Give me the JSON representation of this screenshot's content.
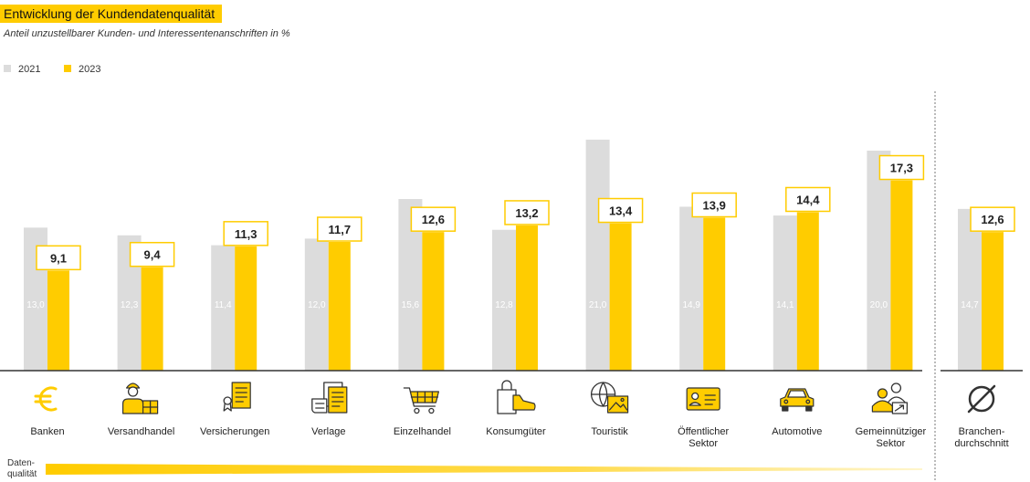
{
  "title": "Entwicklung der Kundendatenqualität",
  "subtitle": "Anteil unzustellbarer Kunden- und Interessentenanschriften in %",
  "data_quality_label": [
    "Daten-",
    "qualität"
  ],
  "colors": {
    "y2021": "#dcdcdc",
    "y2023": "#ffcc00",
    "accent": "#ffcc00",
    "axis": "#333333"
  },
  "chart_data": {
    "type": "bar",
    "series": [
      {
        "name": "2021",
        "values": [
          13.0,
          12.3,
          11.4,
          12.0,
          15.6,
          12.8,
          21.0,
          14.9,
          14.1,
          20.0,
          14.7
        ]
      },
      {
        "name": "2023",
        "values": [
          9.1,
          9.4,
          11.3,
          11.7,
          12.6,
          13.2,
          13.4,
          13.9,
          14.4,
          17.3,
          12.6
        ]
      }
    ],
    "labels_2021": [
      "13,0",
      "12,3",
      "11,4",
      "12,0",
      "15,6",
      "12,8",
      "21,0",
      "14,9",
      "14,1",
      "20,0",
      "14,7"
    ],
    "labels_2023": [
      "9,1",
      "9,4",
      "11,3",
      "11,7",
      "12,6",
      "13,2",
      "13,4",
      "13,9",
      "14,4",
      "17,3",
      "12,6"
    ],
    "categories": [
      [
        "Banken"
      ],
      [
        "Versandhandel"
      ],
      [
        "Versicherungen"
      ],
      [
        "Verlage"
      ],
      [
        "Einzelhandel"
      ],
      [
        "Konsumgüter"
      ],
      [
        "Touristik"
      ],
      [
        "Öffentlicher",
        "Sektor"
      ],
      [
        "Automotive"
      ],
      [
        "Gemeinnütziger",
        "Sektor"
      ],
      [
        "Branchen-",
        "durchschnitt"
      ]
    ],
    "icons": [
      "euro-icon",
      "delivery-person-icon",
      "certificate-icon",
      "newspaper-icon",
      "shopping-cart-icon",
      "shopping-bag-shoe-icon",
      "globe-photo-icon",
      "id-card-icon",
      "car-icon",
      "volunteer-icon",
      "average-icon"
    ],
    "ylim": [
      0,
      25
    ],
    "legend": "top-left",
    "grid": false
  }
}
